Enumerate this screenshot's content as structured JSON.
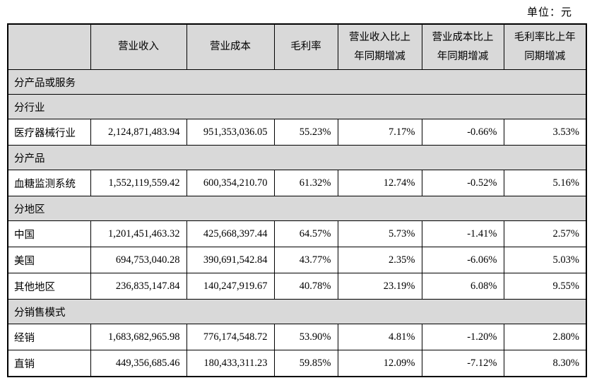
{
  "page": {
    "unit_label": "单位：元"
  },
  "table": {
    "headers": [
      "",
      "营业收入",
      "营业成本",
      "毛利率",
      "营业收入比上\n年同期增减",
      "营业成本比上\n年同期增减",
      "毛利率比上年\n同期增减"
    ],
    "rows": [
      {
        "type": "section",
        "label": "分产品或服务"
      },
      {
        "type": "section",
        "label": "分行业"
      },
      {
        "type": "data",
        "label": "医疗器械行业",
        "revenue": "2,124,871,483.94",
        "cost": "951,353,036.05",
        "margin": "55.23%",
        "revenue_yoy": "7.17%",
        "cost_yoy": "-0.66%",
        "margin_yoy": "3.53%"
      },
      {
        "type": "section",
        "label": "分产品"
      },
      {
        "type": "data",
        "label": "血糖监测系统",
        "revenue": "1,552,119,559.42",
        "cost": "600,354,210.70",
        "margin": "61.32%",
        "revenue_yoy": "12.74%",
        "cost_yoy": "-0.52%",
        "margin_yoy": "5.16%"
      },
      {
        "type": "section",
        "label": "分地区"
      },
      {
        "type": "data",
        "label": "中国",
        "revenue": "1,201,451,463.32",
        "cost": "425,668,397.44",
        "margin": "64.57%",
        "revenue_yoy": "5.73%",
        "cost_yoy": "-1.41%",
        "margin_yoy": "2.57%"
      },
      {
        "type": "data",
        "label": "美国",
        "revenue": "694,753,040.28",
        "cost": "390,691,542.84",
        "margin": "43.77%",
        "revenue_yoy": "2.35%",
        "cost_yoy": "-6.06%",
        "margin_yoy": "5.03%"
      },
      {
        "type": "data",
        "label": "其他地区",
        "revenue": "236,835,147.84",
        "cost": "140,247,919.67",
        "margin": "40.78%",
        "revenue_yoy": "23.19%",
        "cost_yoy": "6.08%",
        "margin_yoy": "9.55%"
      },
      {
        "type": "section",
        "label": "分销售模式"
      },
      {
        "type": "data",
        "label": "经销",
        "revenue": "1,683,682,965.98",
        "cost": "776,174,548.72",
        "margin": "53.90%",
        "revenue_yoy": "4.81%",
        "cost_yoy": "-1.20%",
        "margin_yoy": "2.80%"
      },
      {
        "type": "data",
        "label": "直销",
        "revenue": "449,356,685.46",
        "cost": "180,433,311.23",
        "margin": "59.85%",
        "revenue_yoy": "12.09%",
        "cost_yoy": "-7.12%",
        "margin_yoy": "8.30%"
      }
    ],
    "colors": {
      "header_fill": "#d9d9d9",
      "section_fill": "#d9d9d9",
      "border": "#000000"
    }
  }
}
